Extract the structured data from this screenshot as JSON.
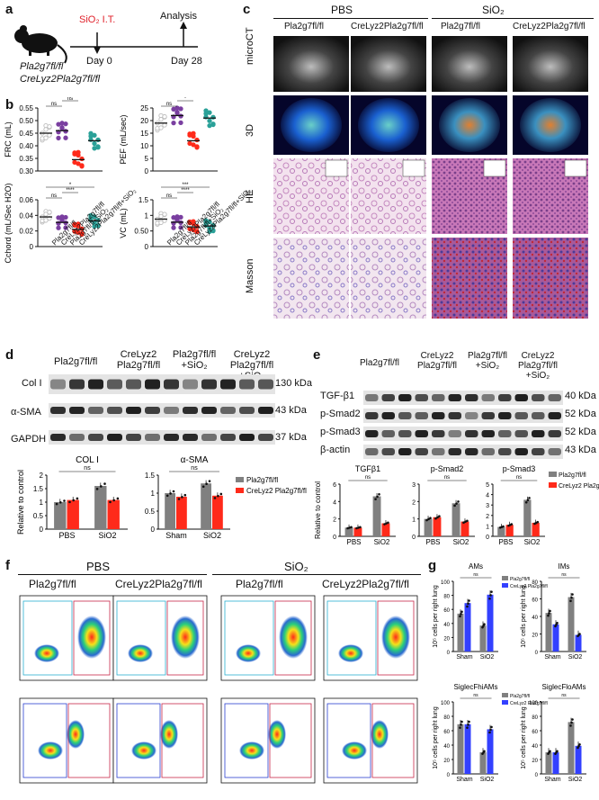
{
  "panel_labels": [
    "a",
    "b",
    "c",
    "d",
    "e",
    "f",
    "g"
  ],
  "a": {
    "treatment": "SiO₂ I.T.",
    "analysis": "Analysis",
    "day0": "Day 0",
    "day28": "Day 28",
    "genotype1": "Pla2g7fl/fl",
    "genotype2": "CreLyz2Pla2g7fl/fl"
  },
  "c": {
    "groups": [
      "PBS",
      "SiO₂"
    ],
    "columns": [
      "Pla2g7fl/fl",
      "CreLyz2Pla2g7fl/fl",
      "Pla2g7fl/fl",
      "CreLyz2Pla2g7fl/fl"
    ],
    "rows": [
      "microCT",
      "3D",
      "HE",
      "Masson"
    ]
  },
  "b_groups": [
    "Pla2g7fl/fl",
    "CreLyz2Pla2g7fl/fl",
    "Pla2g7fl/fl+SiO₂",
    "CreLyz2Pla2g7fl/fl+SiO₂"
  ],
  "d": {
    "columns": [
      "Pla2g7fl/fl",
      "CreLyz2 Pla2g7fl/fl",
      "Pla2g7fl/fl +SiO₂",
      "CreLyz2 Pla2g7fl/fl +SiO₂"
    ],
    "bands": [
      "Col I",
      "α-SMA",
      "GAPDH"
    ],
    "kda": [
      "130 kDa",
      "43 kDa",
      "37 kDa"
    ],
    "legend": [
      "Pla2g7fl/fl",
      "CreLyz2 Pla2g7fl/fl"
    ]
  },
  "e": {
    "columns": [
      "Pla2g7fl/fl",
      "CreLyz2 Pla2g7fl/fl",
      "Pla2g7fl/fl +SiO₂",
      "CreLyz2 Pla2g7fl/fl +SiO₂"
    ],
    "bands": [
      "TGF-β1",
      "p-Smad2",
      "p-Smad3",
      "β-actin"
    ],
    "kda": [
      "40 kDa",
      "52 kDa",
      "52 kDa",
      "43 kDa"
    ],
    "legend": [
      "Pla2g7fl/fl",
      "CreLyz2 Pla2g7fl/fl"
    ]
  },
  "f": {
    "groups": [
      "PBS",
      "SiO₂"
    ],
    "columns": [
      "Pla2g7fl/fl",
      "CreLyz2Pla2g7fl/fl",
      "Pla2g7fl/fl",
      "CreLyz2Pla2g7fl/fl"
    ]
  },
  "g_legend": [
    "Pla2g7fl/fl",
    "CreLyz2 Pla2g7fl/fl"
  ],
  "colors": {
    "gray": "#808080",
    "red": "#ff2a1a",
    "blue": "#3340ff",
    "teal": "#2aa198",
    "purple": "#7a3fa0",
    "lightgray": "#bdbdbd"
  },
  "chart_data": [
    {
      "id": "b-frc",
      "type": "scatter",
      "ylabel": "FRC (mL)",
      "ylim": [
        0.3,
        0.55
      ],
      "yticks": [
        0.3,
        0.35,
        0.4,
        0.45,
        0.5,
        0.55
      ],
      "categories": [
        "Pla2g7fl/fl",
        "CreLyz2Pla2g7fl/fl",
        "Pla2g7fl/fl+SiO2",
        "CreLyz2Pla2g7fl/fl+SiO2"
      ],
      "means": [
        0.45,
        0.46,
        0.345,
        0.42
      ],
      "sig": [
        "ns",
        "ns",
        "***",
        "***"
      ]
    },
    {
      "id": "b-pef",
      "type": "scatter",
      "ylabel": "PEF (mL/sec)",
      "ylim": [
        0,
        25
      ],
      "yticks": [
        0,
        5,
        10,
        15,
        20,
        25
      ],
      "categories": [
        "Pla2g7fl/fl",
        "CreLyz2Pla2g7fl/fl",
        "Pla2g7fl/fl+SiO2",
        "CreLyz2Pla2g7fl/fl+SiO2"
      ],
      "means": [
        19,
        22,
        12,
        21
      ],
      "sig": [
        "ns",
        "*",
        "****",
        "****"
      ]
    },
    {
      "id": "b-cchord",
      "type": "scatter",
      "ylabel": "Cchord (mL/Sec H2O)",
      "ylim": [
        0.0,
        0.06
      ],
      "yticks": [
        0.0,
        0.02,
        0.04,
        0.06
      ],
      "categories": [
        "Pla2g7fl/fl",
        "CreLyz2Pla2g7fl/fl",
        "Pla2g7fl/fl+SiO2",
        "CreLyz2Pla2g7fl/fl+SiO2"
      ],
      "means": [
        0.038,
        0.031,
        0.022,
        0.033
      ],
      "sig": [
        "ns",
        "****",
        "*"
      ]
    },
    {
      "id": "b-vc",
      "type": "scatter",
      "ylabel": "VC (mL)",
      "ylim": [
        0.0,
        1.5
      ],
      "yticks": [
        0.0,
        0.5,
        1.0,
        1.5
      ],
      "categories": [
        "Pla2g7fl/fl",
        "CreLyz2Pla2g7fl/fl",
        "Pla2g7fl/fl+SiO2",
        "CreLyz2Pla2g7fl/fl+SiO2"
      ],
      "means": [
        0.88,
        0.78,
        0.63,
        0.66
      ],
      "sig": [
        "ns",
        "****",
        "***"
      ]
    },
    {
      "id": "d-col1",
      "type": "bar",
      "title": "COL I",
      "ylabel": "Relative to control",
      "categories": [
        "PBS",
        "SiO2"
      ],
      "ylim": [
        0,
        2.0
      ],
      "yticks": [
        0.0,
        0.5,
        1.0,
        1.5,
        2.0
      ],
      "series": [
        {
          "name": "Pla2g7fl/fl",
          "values": [
            1.0,
            1.6
          ]
        },
        {
          "name": "CreLyz2 Pla2g7fl/fl",
          "values": [
            1.08,
            1.08
          ]
        }
      ]
    },
    {
      "id": "d-asma",
      "type": "bar",
      "title": "α-SMA",
      "ylabel": "",
      "categories": [
        "Sham",
        "SiO2"
      ],
      "ylim": [
        0,
        1.5
      ],
      "yticks": [
        0.0,
        0.5,
        1.0,
        1.5
      ],
      "series": [
        {
          "name": "Pla2g7fl/fl",
          "values": [
            1.0,
            1.27
          ]
        },
        {
          "name": "CreLyz2 Pla2g7fl/fl",
          "values": [
            0.9,
            0.93
          ]
        }
      ]
    },
    {
      "id": "e-tgf",
      "type": "bar",
      "title": "TGFβ1",
      "ylabel": "Relative to control",
      "categories": [
        "PBS",
        "SiO2"
      ],
      "ylim": [
        0,
        6
      ],
      "yticks": [
        0,
        2,
        4,
        6
      ],
      "series": [
        {
          "name": "Pla2g7fl/fl",
          "values": [
            1.0,
            4.6
          ]
        },
        {
          "name": "CreLyz2 Pla2g7fl/fl",
          "values": [
            1.0,
            1.5
          ]
        }
      ]
    },
    {
      "id": "e-smad2",
      "type": "bar",
      "title": "p-Smad2",
      "ylabel": "",
      "categories": [
        "PBS",
        "SiO2"
      ],
      "ylim": [
        0,
        3
      ],
      "yticks": [
        0,
        1,
        2,
        3
      ],
      "series": [
        {
          "name": "Pla2g7fl/fl",
          "values": [
            1.0,
            1.9
          ]
        },
        {
          "name": "CreLyz2 Pla2g7fl/fl",
          "values": [
            1.1,
            0.85
          ]
        }
      ]
    },
    {
      "id": "e-smad3",
      "type": "bar",
      "title": "p-Smad3",
      "ylabel": "",
      "categories": [
        "PBS",
        "SiO2"
      ],
      "ylim": [
        0,
        5
      ],
      "yticks": [
        0,
        1,
        2,
        3,
        4,
        5
      ],
      "series": [
        {
          "name": "Pla2g7fl/fl",
          "values": [
            0.9,
            3.5
          ]
        },
        {
          "name": "CreLyz2 Pla2g7fl/fl",
          "values": [
            1.1,
            1.3
          ]
        }
      ]
    },
    {
      "id": "g-ams",
      "type": "bar",
      "title": "AMs",
      "ylabel": "10⁵ cells per right lung",
      "categories": [
        "Sham",
        "SiO2"
      ],
      "ylim": [
        0,
        100
      ],
      "yticks": [
        0,
        20,
        40,
        60,
        80,
        100
      ],
      "series": [
        {
          "name": "Pla2g7fl/fl",
          "values": [
            54,
            37
          ]
        },
        {
          "name": "CreLyz2 Pla2g7fl/fl",
          "values": [
            69,
            81
          ]
        }
      ]
    },
    {
      "id": "g-ims",
      "type": "bar",
      "title": "IMs",
      "ylabel": "10⁵ cells per right lung",
      "categories": [
        "Sham",
        "SiO2"
      ],
      "ylim": [
        0,
        80
      ],
      "yticks": [
        0,
        20,
        40,
        60,
        80
      ],
      "series": [
        {
          "name": "Pla2g7fl/fl",
          "values": [
            44,
            62
          ]
        },
        {
          "name": "CreLyz2 Pla2g7fl/fl",
          "values": [
            31,
            19
          ]
        }
      ]
    },
    {
      "id": "g-sighi",
      "type": "bar",
      "title": "SiglecFhiAMs",
      "ylabel": "10⁵ cells per right lung",
      "categories": [
        "Sham",
        "SiO2"
      ],
      "ylim": [
        0,
        100
      ],
      "yticks": [
        0,
        20,
        40,
        60,
        80,
        100
      ],
      "series": [
        {
          "name": "Pla2g7fl/fl",
          "values": [
            69,
            30
          ]
        },
        {
          "name": "CreLyz2 Pla2g7fl/fl",
          "values": [
            69,
            62
          ]
        }
      ]
    },
    {
      "id": "g-siglo",
      "type": "bar",
      "title": "SiglecFloAMs",
      "ylabel": "10⁵ cells per right lung",
      "categories": [
        "Sham",
        "SiO2"
      ],
      "ylim": [
        0,
        100
      ],
      "yticks": [
        0,
        20,
        40,
        60,
        80,
        100
      ],
      "series": [
        {
          "name": "Pla2g7fl/fl",
          "values": [
            30,
            72
          ]
        },
        {
          "name": "CreLyz2 Pla2g7fl/fl",
          "values": [
            30,
            39
          ]
        }
      ]
    }
  ]
}
